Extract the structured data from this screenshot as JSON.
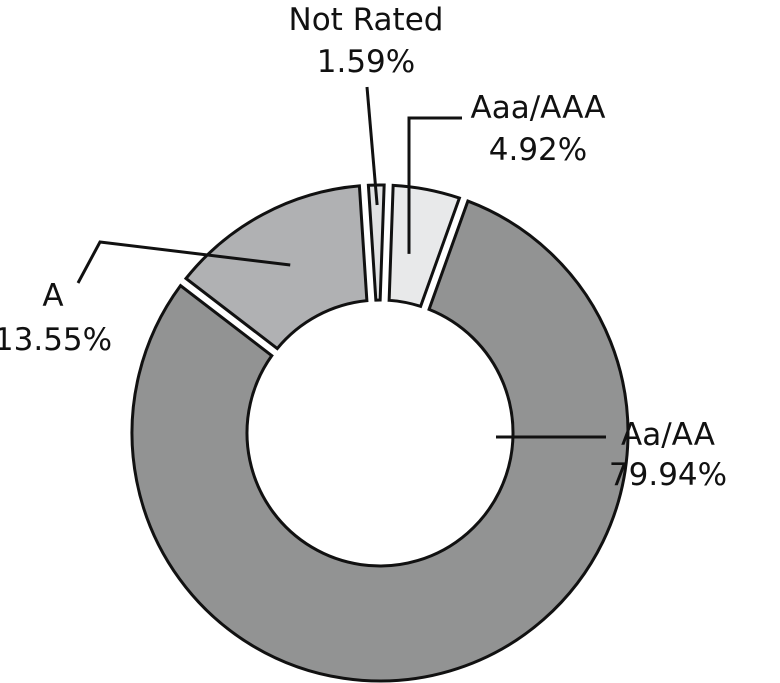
{
  "chart_data": {
    "type": "pie",
    "variant": "donut",
    "title": "",
    "slices": [
      {
        "label": "Aaa/AAA",
        "value": 4.92,
        "value_label": "4.92%",
        "color": "#e8e9ea"
      },
      {
        "label": "Aa/AA",
        "value": 79.94,
        "value_label": "79.94%",
        "color": "#929393"
      },
      {
        "label": "A",
        "value": 13.55,
        "value_label": "13.55%",
        "color": "#b0b1b3"
      },
      {
        "label": "Not Rated",
        "value": 1.59,
        "value_label": "1.59%",
        "color": "#e1e2e3"
      }
    ],
    "start_angle_deg": 2,
    "direction": "clockwise",
    "legend": "none",
    "labels": "outside-with-leader-lines"
  }
}
